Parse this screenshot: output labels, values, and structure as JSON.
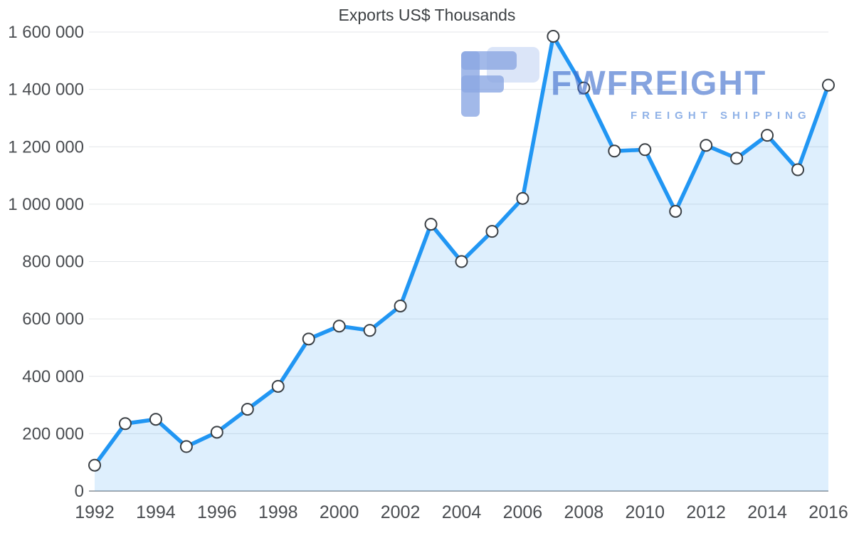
{
  "chart_data": {
    "type": "area",
    "title": "Exports US$ Thousands",
    "x": [
      1992,
      1993,
      1994,
      1995,
      1996,
      1997,
      1998,
      1999,
      2000,
      2001,
      2002,
      2003,
      2004,
      2005,
      2006,
      2007,
      2008,
      2009,
      2010,
      2011,
      2012,
      2013,
      2014,
      2015,
      2016
    ],
    "values": [
      90000,
      235000,
      250000,
      155000,
      205000,
      285000,
      365000,
      530000,
      575000,
      560000,
      645000,
      930000,
      800000,
      905000,
      1020000,
      1585000,
      1405000,
      1185000,
      1190000,
      975000,
      1205000,
      1160000,
      1240000,
      1120000,
      1415000
    ],
    "ylim": [
      0,
      1600000
    ],
    "yticks": [
      0,
      200000,
      400000,
      600000,
      800000,
      1000000,
      1200000,
      1400000,
      1600000
    ],
    "ytick_labels": [
      "0",
      "200 000",
      "400 000",
      "600 000",
      "800 000",
      "1 000 000",
      "1 200 000",
      "1 400 000",
      "1 600 000"
    ],
    "xtick_labels": [
      "1992",
      "1994",
      "1996",
      "1998",
      "2000",
      "2002",
      "2004",
      "2006",
      "2008",
      "2010",
      "2012",
      "2014",
      "2016"
    ],
    "xlabel": "",
    "ylabel": "",
    "grid": true,
    "legend_position": "none",
    "line_color": "#2196f3",
    "fill_color": "rgba(33,150,243,0.15)",
    "marker_fill": "#ffffff",
    "marker_stroke": "#3b4045",
    "gridline_color": "#e3e6e8",
    "axis_color": "#a5aab0",
    "label_color": "#4a4d51"
  },
  "watermark": {
    "brand": "FWFREIGHT",
    "subtitle": "FREIGHT SHIPPING",
    "logo_color": "#7e9ee0"
  }
}
